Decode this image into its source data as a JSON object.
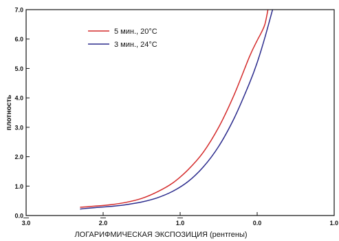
{
  "chart_data": {
    "type": "line",
    "title": "",
    "xlabel": "ЛОГАРИФМИЧЕСКАЯ ЭКСПОЗИЦИЯ (рентгены)",
    "ylabel": "плотность",
    "xlim": [
      -3.0,
      1.0
    ],
    "ylim": [
      0.0,
      7.0
    ],
    "x_ticks": [
      {
        "value": -3.0,
        "label": "3.0",
        "bar": true
      },
      {
        "value": -2.0,
        "label": "2.0",
        "bar": true
      },
      {
        "value": -1.0,
        "label": "1.0",
        "bar": true
      },
      {
        "value": 0.0,
        "label": "0.0",
        "bar": false
      },
      {
        "value": 1.0,
        "label": "1.0",
        "bar": false
      }
    ],
    "y_ticks": [
      {
        "value": 0.0,
        "label": "0.0"
      },
      {
        "value": 1.0,
        "label": "1.0"
      },
      {
        "value": 2.0,
        "label": "2.0"
      },
      {
        "value": 3.0,
        "label": "3.0"
      },
      {
        "value": 4.0,
        "label": "4.0"
      },
      {
        "value": 5.0,
        "label": "5.0"
      },
      {
        "value": 6.0,
        "label": "6.0"
      },
      {
        "value": 7.0,
        "label": "7.0"
      }
    ],
    "grid": false,
    "legend_position": "top-left",
    "series": [
      {
        "name": "5 мин., 20°C",
        "color": "#d42a2a",
        "points": [
          [
            -2.3,
            0.28
          ],
          [
            -2.1,
            0.32
          ],
          [
            -1.9,
            0.37
          ],
          [
            -1.7,
            0.45
          ],
          [
            -1.5,
            0.58
          ],
          [
            -1.3,
            0.8
          ],
          [
            -1.1,
            1.1
          ],
          [
            -0.9,
            1.55
          ],
          [
            -0.7,
            2.15
          ],
          [
            -0.5,
            3.0
          ],
          [
            -0.3,
            4.1
          ],
          [
            -0.1,
            5.4
          ],
          [
            0.0,
            5.95
          ],
          [
            0.05,
            6.2
          ],
          [
            0.1,
            6.5
          ],
          [
            0.14,
            7.0
          ]
        ]
      },
      {
        "name": "3 мин., 24°C",
        "color": "#2a2a8c",
        "points": [
          [
            -2.3,
            0.22
          ],
          [
            -2.1,
            0.27
          ],
          [
            -1.9,
            0.31
          ],
          [
            -1.7,
            0.37
          ],
          [
            -1.5,
            0.46
          ],
          [
            -1.3,
            0.6
          ],
          [
            -1.1,
            0.82
          ],
          [
            -0.9,
            1.15
          ],
          [
            -0.7,
            1.65
          ],
          [
            -0.5,
            2.35
          ],
          [
            -0.3,
            3.3
          ],
          [
            -0.1,
            4.5
          ],
          [
            0.0,
            5.2
          ],
          [
            0.1,
            6.05
          ],
          [
            0.2,
            7.0
          ]
        ]
      }
    ]
  }
}
